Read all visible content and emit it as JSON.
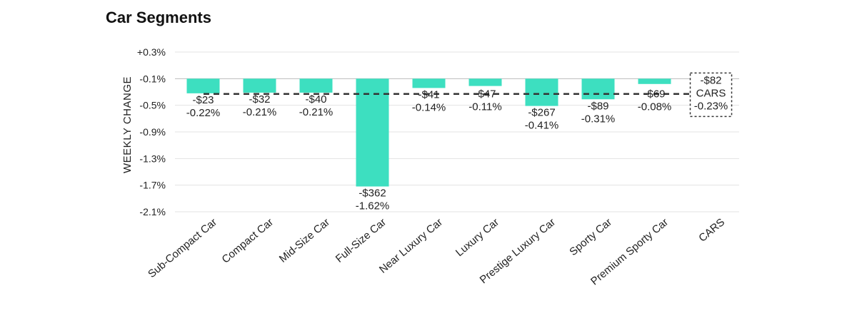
{
  "chart_data": {
    "type": "bar",
    "title": "Car Segments",
    "xlabel": "",
    "ylabel": "WEEKLY CHANGE",
    "ylim": [
      -2.1,
      0.3
    ],
    "yticks": [
      "+0.3%",
      "-0.1%",
      "-0.5%",
      "-0.9%",
      "-1.3%",
      "-1.7%",
      "-2.1%"
    ],
    "ytick_values": [
      0.3,
      -0.1,
      -0.5,
      -0.9,
      -1.3,
      -1.7,
      -2.1
    ],
    "categories": [
      "Sub-Compact Car",
      "Compact Car",
      "Mid-Size Car",
      "Full-Size Car",
      "Near Luxury Car",
      "Luxury Car",
      "Prestige Luxury Car",
      "Sporty Car",
      "Premium Sporty Car",
      "CARS"
    ],
    "values": [
      -0.22,
      -0.21,
      -0.21,
      -1.62,
      -0.14,
      -0.11,
      -0.41,
      -0.31,
      -0.08,
      -0.23
    ],
    "dollar_labels": [
      "-$23",
      "-$32",
      "-$40",
      "-$362",
      "-$41",
      "-$47",
      "-$267",
      "-$89",
      "-$69",
      "-$82"
    ],
    "percent_labels": [
      "-0.22%",
      "-0.21%",
      "-0.21%",
      "-1.62%",
      "-0.14%",
      "-0.11%",
      "-0.41%",
      "-0.31%",
      "-0.08%",
      "-0.23%"
    ],
    "summary_box_label": "CARS",
    "reference_line": {
      "value": -0.23,
      "style": "dashed"
    },
    "grid": true,
    "bar_color": "#3ddfc0",
    "reference_color": "#333333"
  }
}
